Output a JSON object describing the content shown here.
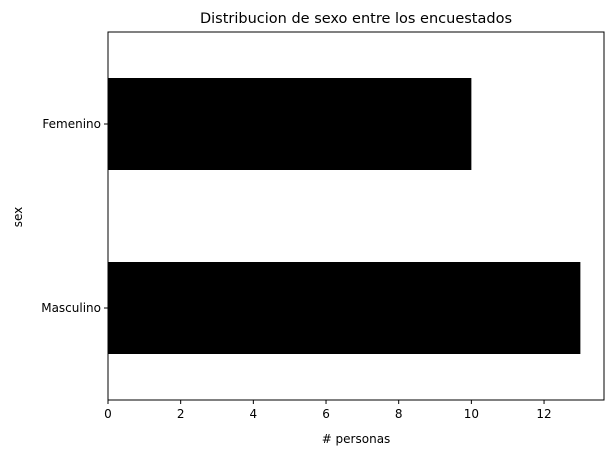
{
  "chart_data": {
    "type": "bar",
    "orientation": "horizontal",
    "title": "Distribucion de sexo entre los encuestados",
    "xlabel": "# personas",
    "ylabel": "sex",
    "categories": [
      "Masculino",
      "Femenino"
    ],
    "values": [
      13,
      10
    ],
    "xlim": [
      0,
      13.65
    ],
    "xticks": [
      0,
      2,
      4,
      6,
      8,
      10,
      12
    ],
    "bar_color": "#000000",
    "grid": false,
    "legend": "none"
  }
}
